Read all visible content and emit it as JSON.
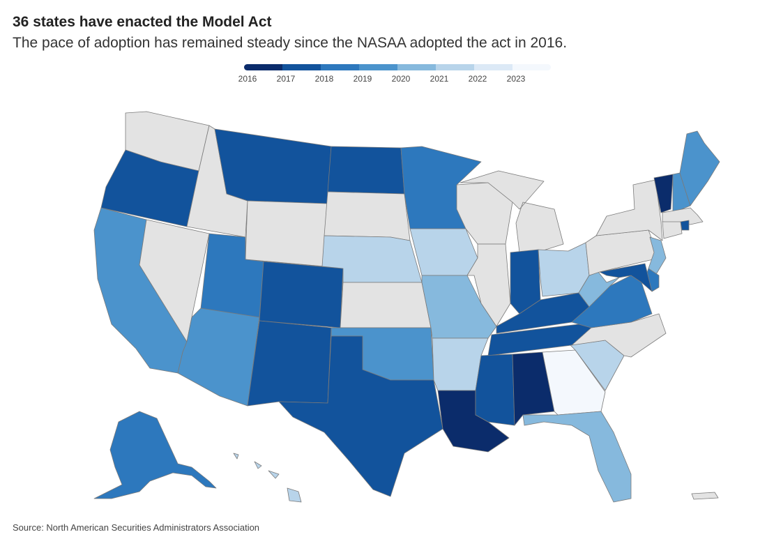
{
  "title": "36 states have enacted the Model Act",
  "subtitle": "The pace of adoption has remained steady since the NASAA adopted the act in 2016.",
  "legend": {
    "items": [
      {
        "year": "2016",
        "color": "#0b2c6b"
      },
      {
        "year": "2017",
        "color": "#12539c"
      },
      {
        "year": "2018",
        "color": "#2d78bd"
      },
      {
        "year": "2019",
        "color": "#4b93cc"
      },
      {
        "year": "2020",
        "color": "#86b9dd"
      },
      {
        "year": "2021",
        "color": "#b8d4ea"
      },
      {
        "year": "2022",
        "color": "#dce9f6"
      },
      {
        "year": "2023",
        "color": "#f4f8fd"
      }
    ],
    "not_enacted_color": "#e3e3e3"
  },
  "map_data": {
    "states": [
      {
        "name": "Washington",
        "year": null
      },
      {
        "name": "Oregon",
        "year": "2017"
      },
      {
        "name": "California",
        "year": "2019"
      },
      {
        "name": "Idaho",
        "year": null
      },
      {
        "name": "Nevada",
        "year": null
      },
      {
        "name": "Montana",
        "year": "2017"
      },
      {
        "name": "Wyoming",
        "year": null
      },
      {
        "name": "Utah",
        "year": "2018"
      },
      {
        "name": "Arizona",
        "year": "2019"
      },
      {
        "name": "Colorado",
        "year": "2017"
      },
      {
        "name": "New Mexico",
        "year": "2017"
      },
      {
        "name": "North Dakota",
        "year": "2017"
      },
      {
        "name": "South Dakota",
        "year": null
      },
      {
        "name": "Nebraska",
        "year": "2021"
      },
      {
        "name": "Kansas",
        "year": null
      },
      {
        "name": "Oklahoma",
        "year": "2019"
      },
      {
        "name": "Texas",
        "year": "2017"
      },
      {
        "name": "Minnesota",
        "year": "2018"
      },
      {
        "name": "Iowa",
        "year": "2021"
      },
      {
        "name": "Missouri",
        "year": "2020"
      },
      {
        "name": "Arkansas",
        "year": "2021"
      },
      {
        "name": "Louisiana",
        "year": "2016"
      },
      {
        "name": "Wisconsin",
        "year": null
      },
      {
        "name": "Illinois",
        "year": null
      },
      {
        "name": "Michigan",
        "year": null
      },
      {
        "name": "Indiana",
        "year": "2017"
      },
      {
        "name": "Ohio",
        "year": "2021"
      },
      {
        "name": "Kentucky",
        "year": "2017"
      },
      {
        "name": "Tennessee",
        "year": "2017"
      },
      {
        "name": "Mississippi",
        "year": "2017"
      },
      {
        "name": "Alabama",
        "year": "2016"
      },
      {
        "name": "Georgia",
        "year": "2023"
      },
      {
        "name": "Florida",
        "year": "2020"
      },
      {
        "name": "South Carolina",
        "year": "2021"
      },
      {
        "name": "North Carolina",
        "year": null
      },
      {
        "name": "Virginia",
        "year": "2018"
      },
      {
        "name": "West Virginia",
        "year": "2020"
      },
      {
        "name": "Pennsylvania",
        "year": null
      },
      {
        "name": "New York",
        "year": null
      },
      {
        "name": "New Jersey",
        "year": "2020"
      },
      {
        "name": "Delaware",
        "year": "2018"
      },
      {
        "name": "Maryland",
        "year": "2017"
      },
      {
        "name": "Vermont",
        "year": "2016"
      },
      {
        "name": "New Hampshire",
        "year": "2019"
      },
      {
        "name": "Maine",
        "year": "2019"
      },
      {
        "name": "Massachusetts",
        "year": null
      },
      {
        "name": "Rhode Island",
        "year": "2017"
      },
      {
        "name": "Connecticut",
        "year": null
      },
      {
        "name": "Alaska",
        "year": "2018"
      },
      {
        "name": "Hawaii",
        "year": "2021"
      },
      {
        "name": "Puerto Rico",
        "year": null
      }
    ]
  },
  "source": "Source: North American Securities Administrators Association"
}
